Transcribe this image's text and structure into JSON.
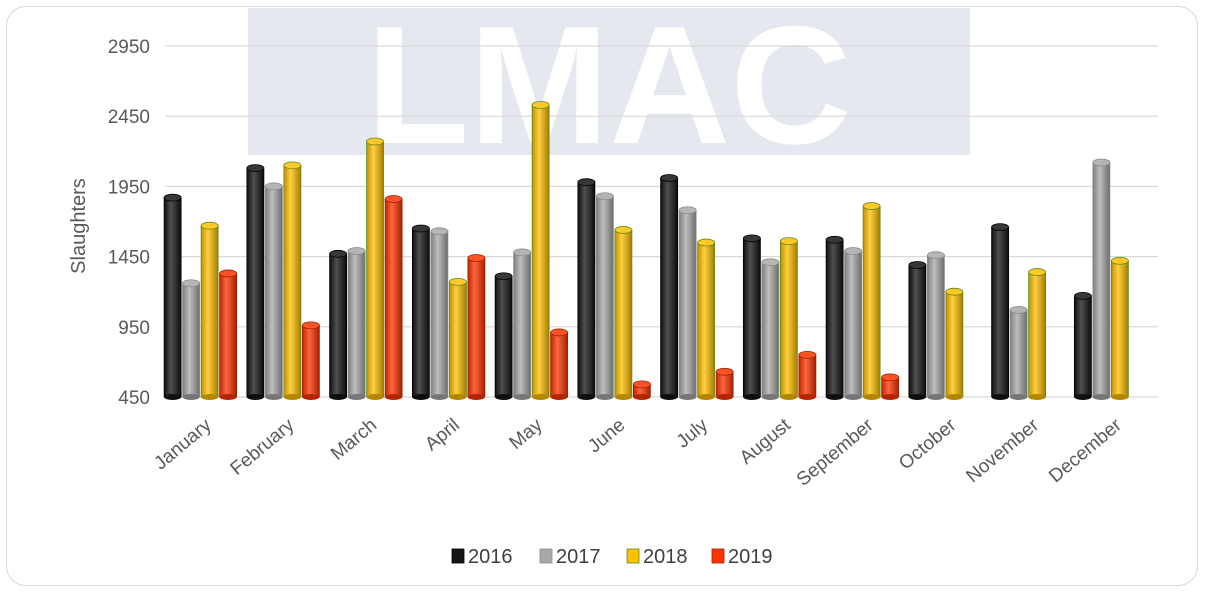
{
  "chart_data": {
    "type": "bar",
    "title": "",
    "xlabel": "",
    "ylabel": "Slaughters",
    "ylim": [
      450,
      3050
    ],
    "yticks": [
      450,
      950,
      1450,
      1950,
      2450,
      2950
    ],
    "grid": "horizontal",
    "legend_position": "bottom",
    "bar_style": "3d-cylinder",
    "watermark": "LMAC",
    "categories": [
      "January",
      "February",
      "March",
      "April",
      "May",
      "June",
      "July",
      "August",
      "September",
      "October",
      "November",
      "December"
    ],
    "series": [
      {
        "name": "2016",
        "color": "#141414",
        "values": [
          1870,
          2080,
          1470,
          1650,
          1310,
          1980,
          2010,
          1580,
          1570,
          1390,
          1660,
          1170
        ]
      },
      {
        "name": "2017",
        "color": "#a8a8a8",
        "values": [
          1260,
          1950,
          1490,
          1630,
          1480,
          1880,
          1780,
          1410,
          1490,
          1460,
          1070,
          2120
        ]
      },
      {
        "name": "2018",
        "color": "#ffc000",
        "values": [
          1670,
          2100,
          2270,
          1270,
          2530,
          1640,
          1550,
          1560,
          1810,
          1200,
          1340,
          1420
        ]
      },
      {
        "name": "2019",
        "color": "#ff3300",
        "values": [
          1330,
          960,
          1860,
          1440,
          910,
          540,
          630,
          750,
          590,
          null,
          null,
          null
        ]
      }
    ]
  }
}
